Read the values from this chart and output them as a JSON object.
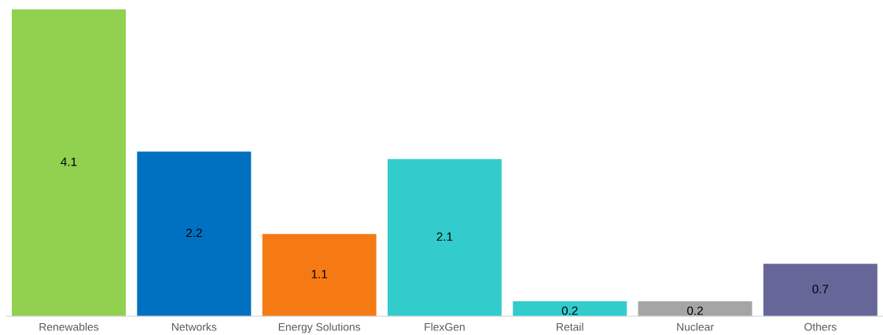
{
  "chart_data": {
    "type": "bar",
    "categories": [
      "Renewables",
      "Networks",
      "Energy Solutions",
      "FlexGen",
      "Retail",
      "Nuclear",
      "Others"
    ],
    "values": [
      4.1,
      2.2,
      1.1,
      2.1,
      0.2,
      0.2,
      0.7
    ],
    "colors": [
      "#92d050",
      "#0070c0",
      "#f57a14",
      "#33cccc",
      "#33cccc",
      "#a5a5a5",
      "#666699"
    ],
    "data_labels": true,
    "grid": false,
    "legend": false
  }
}
